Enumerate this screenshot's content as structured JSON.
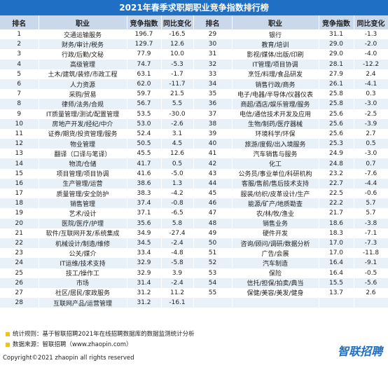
{
  "title": "2021年春季求职期职业竞争指数排行榜",
  "table": {
    "header": [
      "排名",
      "职业",
      "竞争指数",
      "同比变化",
      "排名",
      "职业",
      "竞争指数",
      "同比变化"
    ],
    "left": [
      [
        "1",
        "交通运输服务",
        "196.7",
        "-16.5"
      ],
      [
        "2",
        "财务/审计/税务",
        "129.7",
        "12.6"
      ],
      [
        "3",
        "行政/后勤/文秘",
        "77.9",
        "10.0"
      ],
      [
        "4",
        "高级管理",
        "74.7",
        "-5.3"
      ],
      [
        "5",
        "土木/建筑/装修/市政工程",
        "63.1",
        "-1.7"
      ],
      [
        "6",
        "人力资源",
        "62.0",
        "-11.7"
      ],
      [
        "7",
        "采购/贸易",
        "59.7",
        "21.5"
      ],
      [
        "8",
        "律师/法务/合规",
        "56.7",
        "5.5"
      ],
      [
        "9",
        "IT质量管理/测试/配置管理",
        "53.5",
        "-30.0"
      ],
      [
        "10",
        "房地产开发/经纪/中介",
        "53.0",
        "-2.6"
      ],
      [
        "11",
        "证券/期货/投资管理/服务",
        "52.4",
        "3.1"
      ],
      [
        "12",
        "物业管理",
        "50.5",
        "4.5"
      ],
      [
        "13",
        "翻译（口译与笔译）",
        "45.5",
        "12.6"
      ],
      [
        "14",
        "物流/仓储",
        "41.7",
        "0.5"
      ],
      [
        "15",
        "项目管理/项目协调",
        "41.6",
        "-5.0"
      ],
      [
        "16",
        "生产管理/运营",
        "38.6",
        "1.3"
      ],
      [
        "17",
        "质量管理/安全防护",
        "38.3",
        "-4.2"
      ],
      [
        "18",
        "销售管理",
        "37.4",
        "-0.8"
      ],
      [
        "19",
        "艺术/设计",
        "37.1",
        "-6.5"
      ],
      [
        "20",
        "医院/医疗/护理",
        "35.6",
        "5.8"
      ],
      [
        "21",
        "软件/互联网开发/系统集成",
        "34.9",
        "-27.4"
      ],
      [
        "22",
        "机械设计/制造/维修",
        "34.5",
        "-2.4"
      ],
      [
        "23",
        "公关/媒介",
        "33.4",
        "-4.8"
      ],
      [
        "24",
        "IT运维/技术支持",
        "32.9",
        "-5.8"
      ],
      [
        "25",
        "技工/操作工",
        "32.9",
        "3.9"
      ],
      [
        "26",
        "市场",
        "31.4",
        "-2.4"
      ],
      [
        "27",
        "社区/居民/家政服务",
        "31.2",
        "11.2"
      ],
      [
        "28",
        "互联网产品/运营管理",
        "31.2",
        "-16.1"
      ]
    ],
    "right": [
      [
        "29",
        "银行",
        "31.1",
        "-1.3"
      ],
      [
        "30",
        "教育/培训",
        "29.0",
        "-2.0"
      ],
      [
        "31",
        "影视/媒体/出版/印刷",
        "29.0",
        "-4.0"
      ],
      [
        "32",
        "IT管理/项目协调",
        "28.1",
        "-12.2"
      ],
      [
        "33",
        "烹饪/料理/食品研发",
        "27.9",
        "2.4"
      ],
      [
        "34",
        "销售行政/商务",
        "26.1",
        "-4.1"
      ],
      [
        "35",
        "电子/电器/半导体/仪器仪表",
        "25.8",
        "0.3"
      ],
      [
        "36",
        "商超/酒店/娱乐管理/服务",
        "25.8",
        "-3.0"
      ],
      [
        "37",
        "电信/通信技术开发及应用",
        "25.6",
        "-2.5"
      ],
      [
        "38",
        "生物/制药/医疗器械",
        "25.6",
        "-3.9"
      ],
      [
        "39",
        "环境科学/环保",
        "25.6",
        "2.7"
      ],
      [
        "40",
        "旅游/度假/出入境服务",
        "25.3",
        "0.5"
      ],
      [
        "41",
        "汽车销售与服务",
        "24.9",
        "-3.0"
      ],
      [
        "42",
        "化工",
        "24.8",
        "0.7"
      ],
      [
        "43",
        "公务员/事业单位/科研机构",
        "23.2",
        "-7.6"
      ],
      [
        "44",
        "客服/售前/售后技术支持",
        "22.7",
        "-4.4"
      ],
      [
        "45",
        "服装/纺织/皮革设计/生产",
        "22.5",
        "-0.6"
      ],
      [
        "46",
        "能源/矿产/地质勘查",
        "22.2",
        "5.7"
      ],
      [
        "47",
        "农/林/牧/渔业",
        "21.7",
        "5.7"
      ],
      [
        "48",
        "销售业务",
        "18.6",
        "-3.8"
      ],
      [
        "49",
        "硬件开发",
        "18.3",
        "-7.1"
      ],
      [
        "50",
        "咨询/顾问/调研/数据分析",
        "17.0",
        "-7.3"
      ],
      [
        "51",
        "广告/会展",
        "17.0",
        "-11.8"
      ],
      [
        "52",
        "汽车制造",
        "16.4",
        "-9.1"
      ],
      [
        "53",
        "保险",
        "16.4",
        "-0.5"
      ],
      [
        "54",
        "信托/担保/拍卖/典当",
        "15.5",
        "-5.6"
      ],
      [
        "55",
        "保健/美容/美发/健身",
        "13.7",
        "2.6"
      ]
    ]
  },
  "footer": {
    "rule": "统计规则：基于智联招聘2021年在线招聘数据库的数据监测统计分析",
    "source": "数据来源：智联招聘（www.zhaopin.com）",
    "copyright": "Copyright©2021 zhaopin all rights reserved",
    "logo": "智联招聘"
  }
}
